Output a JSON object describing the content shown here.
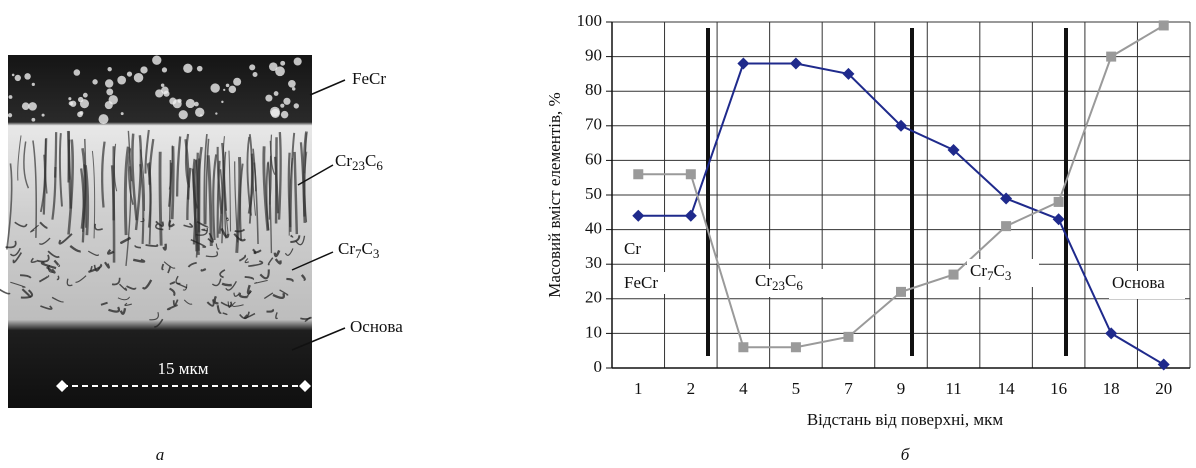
{
  "micrograph": {
    "labels": [
      {
        "parts": [
          "FeCr"
        ]
      },
      {
        "parts": [
          "Cr",
          "23",
          "C",
          "6"
        ]
      },
      {
        "parts": [
          "Cr",
          "7",
          "C",
          "3"
        ]
      },
      {
        "parts": [
          "Основа"
        ]
      }
    ],
    "scale_bar": "15 мкм",
    "caption": "а"
  },
  "chart_data": {
    "type": "line",
    "categories": [
      "1",
      "2",
      "4",
      "5",
      "7",
      "9",
      "11",
      "14",
      "16",
      "18",
      "20"
    ],
    "series": [
      {
        "name": "Cr",
        "color": "#1f2a8c",
        "marker": "diamond",
        "values": [
          44,
          44,
          88,
          88,
          85,
          70,
          63,
          49,
          43,
          10,
          1
        ]
      },
      {
        "name": "FeCr",
        "color": "#9a9a9a",
        "marker": "square",
        "values": [
          56,
          56,
          6,
          6,
          9,
          22,
          27,
          41,
          48,
          90,
          99
        ]
      }
    ],
    "ylim": [
      0,
      100
    ],
    "yticks": [
      0,
      10,
      20,
      30,
      40,
      50,
      60,
      70,
      80,
      90,
      100
    ],
    "grid": true,
    "y_label": "Масовий вміст елементів, %",
    "x_label": "Відстань від поверхні, мкм",
    "annotations": [
      {
        "parts": [
          "Cr",
          "23",
          "C",
          "6"
        ]
      },
      {
        "parts": [
          "Cr",
          "7",
          "C",
          "3"
        ]
      },
      {
        "parts": [
          "Основа"
        ]
      }
    ],
    "caption": "б"
  }
}
